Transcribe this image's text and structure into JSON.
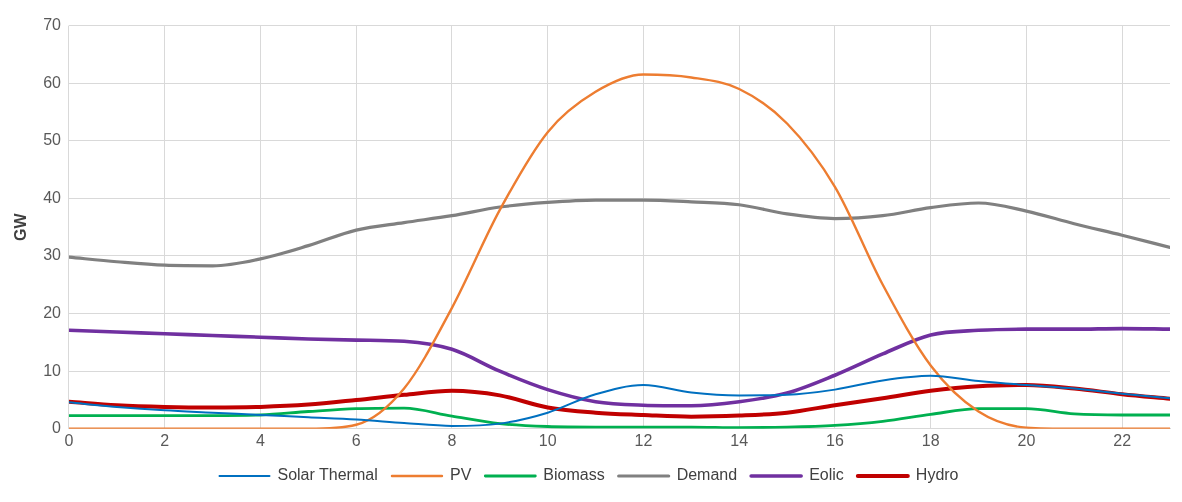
{
  "chart_data": {
    "type": "line",
    "ylabel": "GW",
    "x": [
      0,
      1,
      2,
      3,
      4,
      5,
      6,
      7,
      8,
      9,
      10,
      11,
      12,
      13,
      14,
      15,
      16,
      17,
      18,
      19,
      20,
      21,
      22,
      23
    ],
    "xlim": [
      0,
      23
    ],
    "xticks": [
      0,
      2,
      4,
      6,
      8,
      10,
      12,
      14,
      16,
      18,
      20,
      22
    ],
    "ylim": [
      0,
      70
    ],
    "yticks": [
      0,
      10,
      20,
      30,
      40,
      50,
      60,
      70
    ],
    "grid": true,
    "legend": "bottom",
    "marker": "none",
    "line_style": "solid",
    "series": [
      {
        "name": "Solar Thermal",
        "color": "#0070c0",
        "values": [
          4.6,
          3.8,
          3.2,
          2.8,
          2.4,
          2,
          1.6,
          1,
          0.5,
          0.9,
          2.8,
          6,
          7.6,
          6.3,
          5.8,
          5.9,
          6.8,
          8.4,
          9.2,
          8.3,
          7.6,
          7,
          6.1,
          5.3
        ]
      },
      {
        "name": "PV",
        "color": "#ed7d31",
        "values": [
          0,
          0,
          0,
          0,
          0,
          0,
          0.7,
          7,
          21,
          38,
          51.5,
          58.5,
          61.5,
          61,
          59,
          53,
          42,
          25,
          11,
          3,
          0.2,
          0,
          0,
          0
        ]
      },
      {
        "name": "Biomass",
        "color": "#00b050",
        "values": [
          2.3,
          2.3,
          2.3,
          2.3,
          2.4,
          3,
          3.5,
          3.6,
          2.2,
          0.9,
          0.4,
          0.3,
          0.3,
          0.3,
          0.2,
          0.3,
          0.6,
          1.3,
          2.5,
          3.5,
          3.5,
          2.6,
          2.4,
          2.4
        ]
      },
      {
        "name": "Demand",
        "color": "#808080",
        "values": [
          29.8,
          29,
          28.4,
          28.3,
          29.5,
          31.8,
          34.5,
          35.8,
          37,
          38.5,
          39.3,
          39.7,
          39.7,
          39.4,
          38.9,
          37.3,
          36.5,
          37,
          38.4,
          39.2,
          37.8,
          35.6,
          33.6,
          31.5
        ]
      },
      {
        "name": "Eolic",
        "color": "#7030a0",
        "values": [
          17.1,
          16.8,
          16.5,
          16.2,
          15.9,
          15.6,
          15.4,
          15.2,
          13.8,
          10,
          6.8,
          4.7,
          4.1,
          4,
          4.7,
          6.2,
          9.3,
          13,
          16.3,
          17.1,
          17.3,
          17.3,
          17.4,
          17.3
        ]
      },
      {
        "name": "Hydro",
        "color": "#c00000",
        "values": [
          4.7,
          4.1,
          3.8,
          3.7,
          3.8,
          4.2,
          5,
          5.9,
          6.6,
          5.8,
          3.7,
          2.8,
          2.4,
          2.1,
          2.3,
          2.8,
          4.1,
          5.3,
          6.6,
          7.4,
          7.6,
          7,
          6,
          5.2
        ]
      }
    ]
  }
}
